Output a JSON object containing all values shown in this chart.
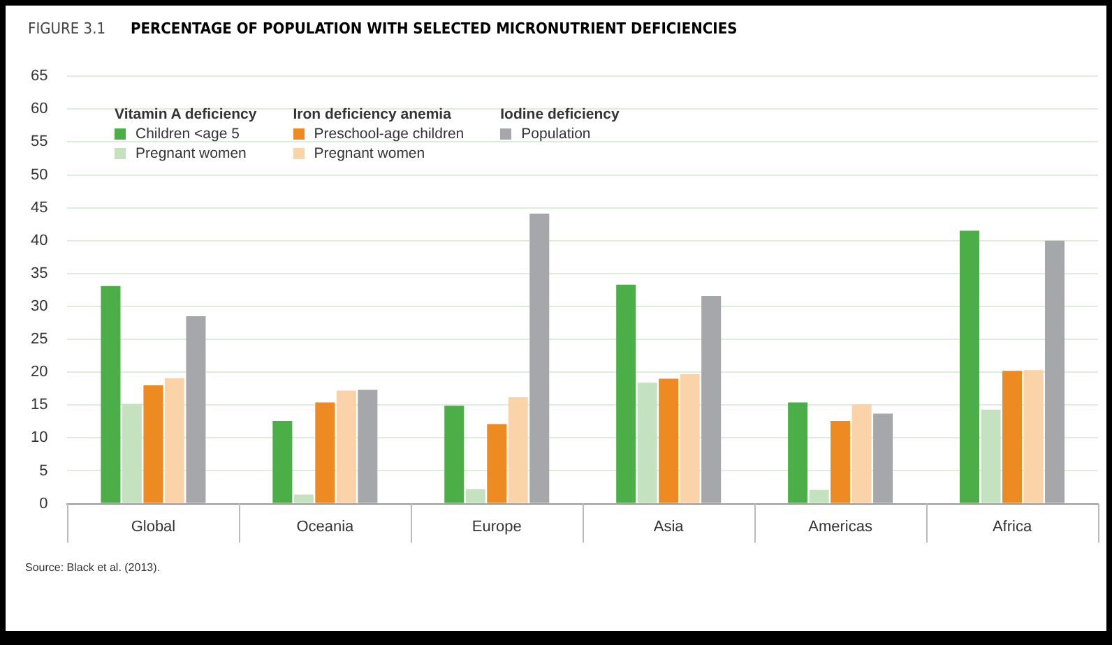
{
  "chart_data": {
    "type": "bar",
    "title": "PERCENTAGE OF POPULATION WITH SELECTED MICRONUTRIENT DEFICIENCIES",
    "subtitle": "FIGURE 3.1",
    "legend_title": [
      "Vitamin A deficiency",
      "Iron deficiency anemia",
      "Iodine deficiency"
    ],
    "categories": [
      "Global",
      "Oceania",
      "Europe",
      "Asia",
      "Americas",
      "Africa"
    ],
    "series": [
      {
        "name": "Children <age 5",
        "color": "#4cae47",
        "values": [
          33.1,
          12.6,
          14.9,
          33.3,
          15.4,
          41.5
        ]
      },
      {
        "name": "Pregnant women",
        "color": "#c5e2c0",
        "values": [
          15.2,
          1.4,
          2.2,
          18.4,
          2.1,
          14.3
        ]
      },
      {
        "name": "Preschool-age children",
        "color": "#ee8a22",
        "values": [
          18.0,
          15.4,
          12.1,
          19.0,
          12.6,
          20.2
        ]
      },
      {
        "name": "Pregnant women",
        "color": "#fbd3a8",
        "values": [
          19.1,
          17.2,
          16.2,
          19.7,
          15.1,
          20.3
        ]
      },
      {
        "name": "Population",
        "color": "#a6a7aa",
        "values": [
          28.5,
          17.3,
          44.1,
          31.6,
          13.7,
          40.0
        ]
      }
    ],
    "ylim": [
      0,
      65
    ],
    "yticks": [
      0,
      5,
      10,
      15,
      20,
      25,
      30,
      35,
      40,
      45,
      50,
      55,
      60,
      65
    ],
    "grid": "y",
    "legend": "top left",
    "annotations": [
      "Source: Black et al. (2013)."
    ]
  }
}
